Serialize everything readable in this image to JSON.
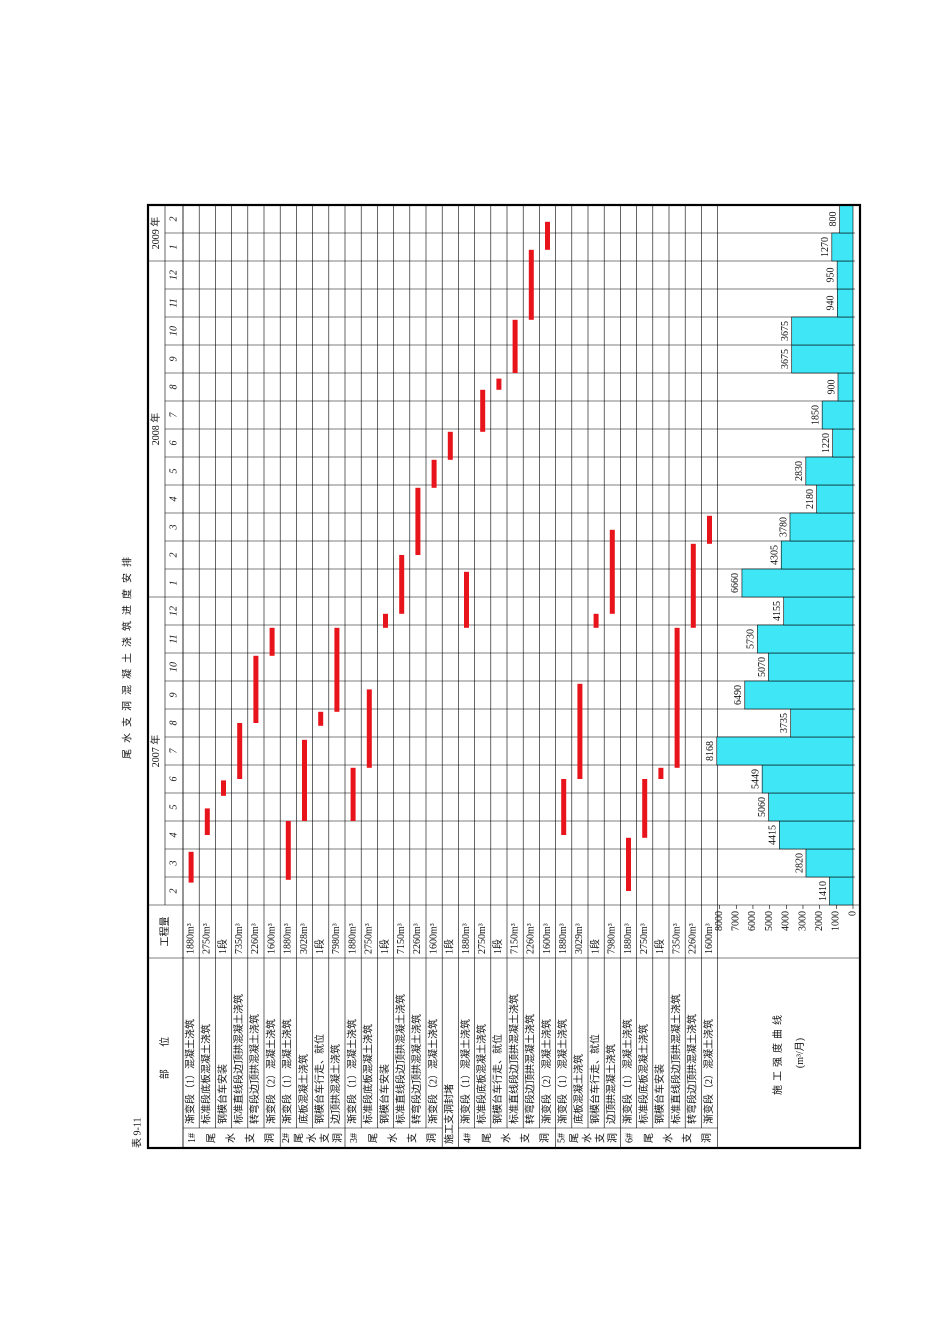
{
  "table_no": "表 9-11",
  "title": "尾水支洞混凝土浇筑进度安排",
  "header": {
    "part": "部 位",
    "quantity": "工程量",
    "years": [
      "2007 年",
      "2008 年",
      "2009 年"
    ],
    "months": [
      2,
      3,
      4,
      5,
      6,
      7,
      8,
      9,
      10,
      11,
      12,
      1,
      2,
      3,
      4,
      5,
      6,
      7,
      8,
      9,
      10,
      11,
      12,
      1,
      2
    ]
  },
  "groups": [
    {
      "label": [
        "1#",
        "尾",
        "水",
        "支",
        "洞"
      ],
      "rows": [
        {
          "name": "渐变段（1）混凝土浇筑",
          "qty": "1880m³",
          "bar": [
            0.8,
            1.9
          ]
        },
        {
          "name": "标准段底板混凝土浇筑",
          "qty": "2750m³",
          "bar": [
            2.5,
            3.45
          ]
        },
        {
          "name": "钢模台车安装",
          "qty": "1段",
          "bar": [
            3.9,
            4.45
          ]
        },
        {
          "name": "标准直线段边顶拱混凝土浇筑",
          "qty": "7350m³",
          "bar": [
            4.5,
            6.5
          ]
        },
        {
          "name": "转弯段边顶拱混凝土浇筑",
          "qty": "2260m³",
          "bar": [
            6.5,
            8.9
          ]
        },
        {
          "name": "渐变段（2）混凝土浇筑",
          "qty": "1600m³",
          "bar": [
            8.9,
            9.9
          ]
        }
      ]
    },
    {
      "label": [
        "2#",
        "尾",
        "水",
        "支",
        "洞"
      ],
      "rows": [
        {
          "name": "渐变段（1）混凝土浇筑",
          "qty": "1880m³",
          "bar": [
            0.9,
            3.0
          ]
        },
        {
          "name": "底板混凝土浇筑",
          "qty": "3028m³",
          "bar": [
            3.0,
            5.9
          ]
        },
        {
          "name": "钢模台车行走、就位",
          "qty": "1段",
          "bar": [
            6.4,
            6.9
          ]
        },
        {
          "name": "边顶拱混凝土浇筑",
          "qty": "7980m³",
          "bar": [
            6.9,
            9.9
          ]
        }
      ]
    },
    {
      "label": [
        "3#",
        "尾",
        "水",
        "支",
        "洞"
      ],
      "rows": [
        {
          "name": "渐变段（1）混凝土浇筑",
          "qty": "1880m³",
          "bar": [
            3.0,
            4.9
          ]
        },
        {
          "name": "标准段底板混凝土浇筑",
          "qty": "2750m³",
          "bar": [
            4.9,
            7.7
          ]
        },
        {
          "name": "钢模台车安装",
          "qty": "1段",
          "bar": [
            9.9,
            10.4
          ]
        },
        {
          "name": "标准直线段边顶拱混凝土浇筑",
          "qty": "7150m³",
          "bar": [
            10.4,
            12.5
          ]
        },
        {
          "name": "转弯段边顶拱混凝土浇筑",
          "qty": "2260m³",
          "bar": [
            12.5,
            14.9
          ]
        },
        {
          "name": "渐变段（2）混凝土浇筑",
          "qty": "1600m³",
          "bar": [
            14.9,
            15.9
          ]
        }
      ]
    },
    {
      "rows": [
        {
          "name": "施工支洞封堵",
          "qty": "1段",
          "bar": [
            15.9,
            16.9
          ]
        }
      ]
    },
    {
      "label": [
        "4#",
        "尾",
        "水",
        "支",
        "洞"
      ],
      "rows": [
        {
          "name": "渐变段（1）混凝土浇筑",
          "qty": "1880m³",
          "bar": [
            9.9,
            11.9
          ]
        },
        {
          "name": "标准段底板混凝土浇筑",
          "qty": "2750m³",
          "bar": [
            16.9,
            18.4
          ]
        },
        {
          "name": "钢模台车行走、就位",
          "qty": "1段",
          "bar": [
            18.4,
            18.8
          ]
        },
        {
          "name": "标准直线段边顶拱混凝土浇筑",
          "qty": "7150m³",
          "bar": [
            19.0,
            20.9
          ]
        },
        {
          "name": "转弯段边顶拱混凝土浇筑",
          "qty": "2260m³",
          "bar": [
            20.9,
            23.4
          ]
        },
        {
          "name": "渐变段（2）混凝土浇筑",
          "qty": "1600m³",
          "bar": [
            23.4,
            24.4
          ]
        }
      ]
    },
    {
      "label": [
        "5#",
        "尾",
        "水",
        "支",
        "洞"
      ],
      "rows": [
        {
          "name": "渐变段（1）混凝土浇筑",
          "qty": "1880m³",
          "bar": [
            2.5,
            4.5
          ]
        },
        {
          "name": "底板混凝土浇筑",
          "qty": "3029m³",
          "bar": [
            4.5,
            7.9
          ]
        },
        {
          "name": "钢模台车行走、就位",
          "qty": "1段",
          "bar": [
            9.9,
            10.4
          ]
        },
        {
          "name": "边顶拱混凝土浇筑",
          "qty": "7980m³",
          "bar": [
            10.4,
            13.4
          ]
        }
      ]
    },
    {
      "label": [
        "6#",
        "尾",
        "水",
        "支",
        "洞"
      ],
      "rows": [
        {
          "name": "渐变段（1）混凝土浇筑",
          "qty": "1880m³",
          "bar": [
            0.5,
            2.4
          ]
        },
        {
          "name": "标准段底板混凝土浇筑",
          "qty": "2750m³",
          "bar": [
            2.4,
            4.5
          ]
        },
        {
          "name": "钢模台车安装",
          "qty": "1段",
          "bar": [
            4.5,
            4.9
          ]
        },
        {
          "name": "标准直线段边顶拱混凝土浇筑",
          "qty": "7350m³",
          "bar": [
            4.9,
            9.9
          ]
        },
        {
          "name": "转弯段边顶拱混凝土浇筑",
          "qty": "2260m³",
          "bar": [
            9.9,
            12.9
          ]
        },
        {
          "name": "渐变段（2）混凝土浇筑",
          "qty": "1600m³",
          "bar": [
            12.9,
            13.9
          ]
        }
      ]
    }
  ],
  "curve": {
    "label": "施工强度曲线",
    "unit": "(m³/月)",
    "color": "#3fe6f5",
    "ylim": [
      0,
      8000
    ],
    "yticks": [
      0,
      1000,
      2000,
      3000,
      4000,
      5000,
      6000,
      7000,
      8000
    ],
    "values": [
      1410,
      2820,
      4415,
      5060,
      5449,
      8168,
      3735,
      6490,
      5070,
      5730,
      4155,
      6660,
      4305,
      3780,
      2180,
      2830,
      1220,
      1850,
      900,
      3675,
      3675,
      940,
      950,
      1270,
      800
    ]
  }
}
